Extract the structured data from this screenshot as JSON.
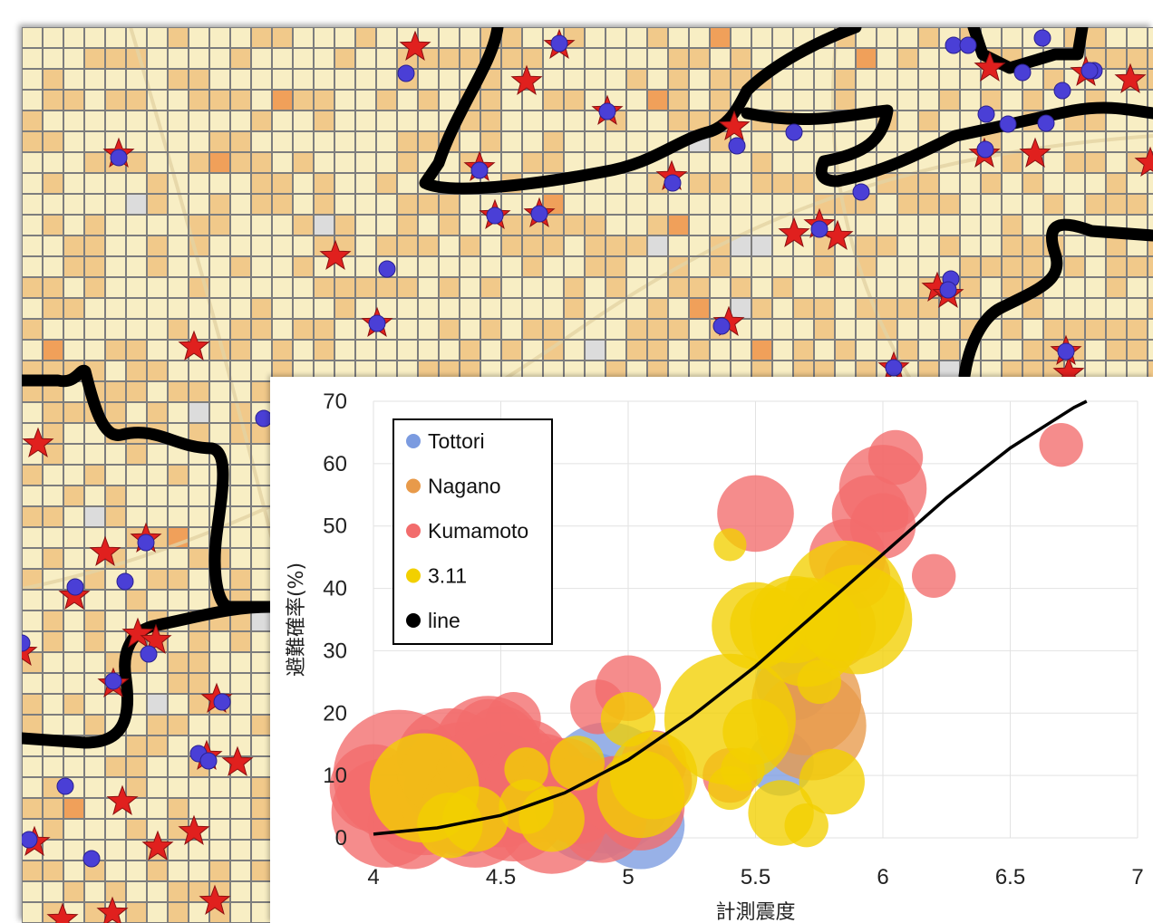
{
  "map": {
    "marker_colors": {
      "star": "#e0201e",
      "dot": "#4a3fd6",
      "boundary": "#000000",
      "grid_line": "#7d7d7d"
    },
    "cell_colors": {
      "light": "#f8eec4",
      "medium": "#f1c98a",
      "dark": "#f0a05a",
      "gray": "#dcdcdc"
    }
  },
  "chart_data": {
    "type": "scatter",
    "xlabel": "計測震度",
    "ylabel": "避難確率(%)",
    "xlim": [
      4,
      7
    ],
    "ylim": [
      0,
      70
    ],
    "x_ticks": [
      "4",
      "4.5",
      "5",
      "5.5",
      "6",
      "6.5",
      "7"
    ],
    "y_ticks": [
      "0",
      "10",
      "20",
      "30",
      "40",
      "50",
      "60",
      "70"
    ],
    "grid": true,
    "legend_position": "top-left",
    "legend": [
      {
        "name": "Tottori",
        "color": "#7b9be0"
      },
      {
        "name": "Nagano",
        "color": "#e89a4a"
      },
      {
        "name": "Kumamoto",
        "color": "#f26c6c"
      },
      {
        "name": "3.11",
        "color": "#f2d000"
      },
      {
        "name": "line",
        "color": "#000000"
      }
    ],
    "series": [
      {
        "name": "Tottori",
        "color": "#7b9be0",
        "points": [
          [
            4.2,
            13,
            2.5
          ],
          [
            4.25,
            8,
            3
          ],
          [
            4.35,
            4,
            4
          ],
          [
            4.5,
            10,
            4
          ],
          [
            4.85,
            5,
            5
          ],
          [
            4.92,
            8,
            6
          ],
          [
            5.05,
            2,
            4
          ],
          [
            5.6,
            12,
            3
          ],
          [
            5.65,
            25,
            3.5
          ],
          [
            5.7,
            30,
            3
          ]
        ]
      },
      {
        "name": "Nagano",
        "color": "#e89a4a",
        "points": [
          [
            5.7,
            22,
            5
          ],
          [
            5.72,
            18,
            5
          ],
          [
            5.8,
            34,
            4
          ]
        ]
      },
      {
        "name": "Kumamoto",
        "color": "#f26c6c",
        "points": [
          [
            4.0,
            8,
            4
          ],
          [
            4.05,
            4,
            5
          ],
          [
            4.1,
            10,
            6
          ],
          [
            4.15,
            2,
            4
          ],
          [
            4.2,
            6,
            5
          ],
          [
            4.3,
            12,
            5
          ],
          [
            4.35,
            8,
            6
          ],
          [
            4.4,
            4,
            5
          ],
          [
            4.45,
            14,
            5
          ],
          [
            4.5,
            9,
            6
          ],
          [
            4.55,
            5,
            5
          ],
          [
            4.6,
            12,
            4
          ],
          [
            4.65,
            8,
            5
          ],
          [
            4.7,
            3,
            5
          ],
          [
            4.75,
            9,
            4
          ],
          [
            4.8,
            6,
            4
          ],
          [
            4.5,
            15,
            3.5
          ],
          [
            4.45,
            17,
            3
          ],
          [
            4.55,
            19,
            2.5
          ],
          [
            4.9,
            3,
            4
          ],
          [
            4.95,
            7,
            3.5
          ],
          [
            5.05,
            5,
            4
          ],
          [
            5.1,
            9,
            3.5
          ],
          [
            5.1,
            12,
            3
          ],
          [
            5.0,
            24,
            3
          ],
          [
            4.88,
            21,
            2.5
          ],
          [
            5.4,
            10,
            2.5
          ],
          [
            5.5,
            52,
            3.5
          ],
          [
            5.86,
            45,
            3.5
          ],
          [
            5.9,
            42,
            3
          ],
          [
            5.95,
            52,
            3.5
          ],
          [
            6.0,
            56,
            4
          ],
          [
            6.0,
            50,
            3
          ],
          [
            6.05,
            61,
            2.5
          ],
          [
            6.2,
            42,
            2
          ],
          [
            6.7,
            63,
            2
          ]
        ]
      },
      {
        "name": "3.11",
        "color": "#f2d000",
        "points": [
          [
            4.2,
            8,
            5
          ],
          [
            4.3,
            2,
            3
          ],
          [
            4.4,
            3,
            3
          ],
          [
            4.6,
            5,
            2.5
          ],
          [
            4.6,
            11,
            2
          ],
          [
            4.7,
            3,
            3
          ],
          [
            4.8,
            12,
            2.5
          ],
          [
            5.0,
            19,
            2.5
          ],
          [
            5.05,
            7,
            4
          ],
          [
            5.1,
            10,
            4
          ],
          [
            5.4,
            19,
            6
          ],
          [
            5.4,
            8,
            2
          ],
          [
            5.45,
            11,
            2
          ],
          [
            5.5,
            17,
            3
          ],
          [
            5.5,
            34,
            4
          ],
          [
            5.55,
            34,
            3.5
          ],
          [
            5.6,
            4,
            3
          ],
          [
            5.65,
            35,
            4
          ],
          [
            5.7,
            33,
            5
          ],
          [
            5.7,
            2,
            2
          ],
          [
            5.75,
            25,
            2
          ],
          [
            5.8,
            9,
            3
          ],
          [
            5.85,
            38,
            5.5
          ],
          [
            5.9,
            35,
            5
          ],
          [
            5.4,
            47,
            1.5
          ]
        ]
      }
    ],
    "curve": {
      "name": "line",
      "color": "#000000",
      "points": [
        [
          4.0,
          0.6
        ],
        [
          4.25,
          1.6
        ],
        [
          4.5,
          3.6
        ],
        [
          4.75,
          7.2
        ],
        [
          5.0,
          12.5
        ],
        [
          5.25,
          19.5
        ],
        [
          5.5,
          27.5
        ],
        [
          5.75,
          36.5
        ],
        [
          6.0,
          45.5
        ],
        [
          6.25,
          54.5
        ],
        [
          6.5,
          62.5
        ],
        [
          6.75,
          69
        ],
        [
          6.8,
          70
        ]
      ]
    }
  }
}
